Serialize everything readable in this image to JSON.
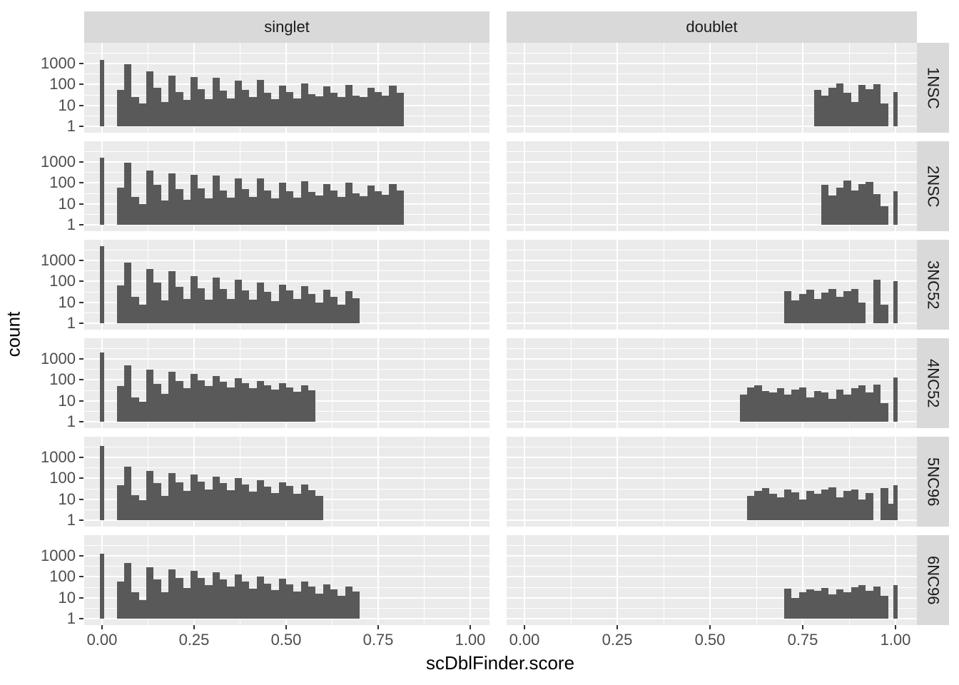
{
  "chart_data": {
    "type": "bar",
    "subtype": "faceted-log-histogram",
    "title": "",
    "x_axis": {
      "label": "scDblFinder.score",
      "tick_labels": [
        "0.00",
        "0.25",
        "0.50",
        "0.75",
        "1.00"
      ],
      "tick_values": [
        0,
        0.25,
        0.5,
        0.75,
        1.0
      ],
      "range": [
        -0.048,
        1.052
      ],
      "minor_gridlines": [
        0.125,
        0.375,
        0.625,
        0.875
      ]
    },
    "y_axis": {
      "label": "count",
      "scale": "log10",
      "tick_labels": [
        "1000",
        "100",
        "10",
        "1"
      ],
      "tick_values": [
        1000,
        100,
        10,
        1
      ],
      "minor_gridlines_log10": [
        0.5,
        1.5,
        2.5,
        3.5
      ]
    },
    "facet_columns": [
      "singlet",
      "doublet"
    ],
    "facet_rows": [
      "1NSC",
      "2NSC",
      "3NC52",
      "4NC52",
      "5NC96",
      "6NC96"
    ],
    "binwidth": 0.02,
    "legend": "none",
    "grid": "on",
    "colors": {
      "bar_fill": "#595959",
      "panel_background": "#EBEBEB",
      "gridline": "#FFFFFF",
      "strip_background": "#D9D9D9",
      "strip_text": "#1A1A1A",
      "axis_text": "#4D4D4D",
      "axis_title": "#000000",
      "tick_mark": "#333333"
    },
    "panels": [
      {
        "row": "1NSC",
        "col": "singlet",
        "spike_at_0": 1500,
        "spike_at_1": null,
        "bin_start": 0.04,
        "counts": [
          55,
          900,
          25,
          12,
          420,
          70,
          15,
          260,
          45,
          18,
          230,
          60,
          20,
          210,
          50,
          22,
          150,
          55,
          25,
          160,
          40,
          20,
          90,
          45,
          22,
          110,
          35,
          28,
          80,
          40,
          25,
          95,
          30,
          26,
          70,
          45,
          30,
          85,
          40
        ],
        "extra_bars": []
      },
      {
        "row": "1NSC",
        "col": "doublet",
        "spike_at_0": null,
        "spike_at_1": 45,
        "bin_start": 0.78,
        "counts": [
          55,
          30,
          70,
          115,
          40,
          15,
          95,
          60,
          105,
          12
        ],
        "extra_bars": []
      },
      {
        "row": "2NSC",
        "col": "singlet",
        "spike_at_0": 1600,
        "spike_at_1": null,
        "bin_start": 0.04,
        "counts": [
          60,
          950,
          22,
          10,
          380,
          80,
          14,
          280,
          50,
          16,
          240,
          55,
          18,
          220,
          45,
          20,
          160,
          50,
          22,
          170,
          45,
          18,
          100,
          40,
          20,
          120,
          38,
          25,
          85,
          42,
          22,
          100,
          32,
          24,
          75,
          40,
          28,
          90,
          45
        ],
        "extra_bars": []
      },
      {
        "row": "2NSC",
        "col": "doublet",
        "spike_at_0": null,
        "spike_at_1": 40,
        "bin_start": 0.8,
        "counts": [
          80,
          25,
          60,
          130,
          45,
          90,
          115,
          30,
          8
        ],
        "extra_bars": []
      },
      {
        "row": "3NC52",
        "col": "singlet",
        "spike_at_0": 5000,
        "spike_at_1": null,
        "bin_start": 0.04,
        "counts": [
          65,
          800,
          18,
          8,
          380,
          85,
          12,
          300,
          55,
          14,
          180,
          48,
          13,
          150,
          42,
          15,
          120,
          38,
          13,
          90,
          32,
          11,
          70,
          36,
          14,
          60,
          26,
          10,
          40,
          18,
          8,
          35,
          16
        ],
        "extra_bars": []
      },
      {
        "row": "3NC52",
        "col": "doublet",
        "spike_at_0": null,
        "spike_at_1": 105,
        "bin_start": 0.7,
        "counts": [
          35,
          12,
          25,
          40,
          15,
          30,
          45,
          18,
          35,
          45,
          10
        ],
        "extra_bars": [
          [
            0.94,
            120
          ],
          [
            0.96,
            8
          ]
        ]
      },
      {
        "row": "4NC52",
        "col": "singlet",
        "spike_at_0": 2000,
        "spike_at_1": null,
        "bin_start": 0.04,
        "counts": [
          50,
          500,
          14,
          9,
          300,
          65,
          22,
          250,
          85,
          40,
          200,
          95,
          50,
          150,
          80,
          45,
          120,
          70,
          40,
          90,
          55,
          35,
          70,
          45,
          28,
          55,
          32
        ],
        "extra_bars": []
      },
      {
        "row": "4NC52",
        "col": "doublet",
        "spike_at_0": null,
        "spike_at_1": 130,
        "bin_start": 0.58,
        "counts": [
          20,
          45,
          55,
          30,
          25,
          40,
          20,
          35,
          45,
          15,
          30,
          25,
          12,
          35,
          20,
          40,
          55,
          25,
          60,
          8
        ],
        "extra_bars": []
      },
      {
        "row": "5NC96",
        "col": "singlet",
        "spike_at_0": 3500,
        "spike_at_1": null,
        "bin_start": 0.04,
        "counts": [
          48,
          350,
          16,
          9,
          220,
          60,
          15,
          180,
          65,
          25,
          150,
          70,
          30,
          120,
          60,
          28,
          100,
          50,
          24,
          80,
          40,
          20,
          65,
          42,
          18,
          50,
          28,
          14
        ],
        "extra_bars": []
      },
      {
        "row": "5NC96",
        "col": "doublet",
        "spike_at_0": null,
        "spike_at_1": 48,
        "bin_start": 0.6,
        "counts": [
          15,
          25,
          35,
          18,
          12,
          30,
          22,
          10,
          25,
          18,
          30,
          38,
          12,
          25,
          30,
          10,
          20
        ],
        "extra_bars": [
          [
            0.96,
            35
          ],
          [
            0.98,
            6
          ]
        ]
      },
      {
        "row": "6NC96",
        "col": "singlet",
        "spike_at_0": 1300,
        "spike_at_1": null,
        "bin_start": 0.04,
        "counts": [
          60,
          450,
          18,
          8,
          280,
          75,
          18,
          220,
          85,
          30,
          200,
          90,
          40,
          160,
          75,
          35,
          130,
          60,
          28,
          100,
          48,
          24,
          80,
          44,
          20,
          60,
          34,
          16,
          45,
          26,
          12,
          35,
          20
        ],
        "extra_bars": []
      },
      {
        "row": "6NC96",
        "col": "doublet",
        "spike_at_0": null,
        "spike_at_1": 40,
        "bin_start": 0.7,
        "counts": [
          28,
          10,
          18,
          25,
          22,
          30,
          14,
          25,
          18,
          32,
          40,
          22,
          35,
          12
        ],
        "extra_bars": []
      }
    ]
  }
}
